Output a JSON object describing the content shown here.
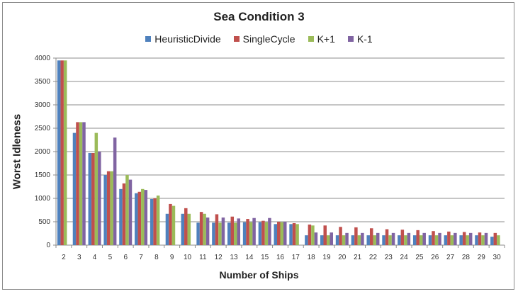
{
  "chart_data": {
    "type": "bar",
    "title": "Sea Condition 3",
    "xlabel": "Number of Ships",
    "ylabel": "Worst Idleness",
    "ylim": [
      0,
      4000
    ],
    "yticks": [
      0,
      500,
      1000,
      1500,
      2000,
      2500,
      3000,
      3500,
      4000
    ],
    "grid": true,
    "legend_position": "top",
    "categories": [
      "2",
      "3",
      "4",
      "5",
      "6",
      "7",
      "8",
      "9",
      "10",
      "11",
      "12",
      "13",
      "14",
      "15",
      "16",
      "17",
      "18",
      "19",
      "20",
      "21",
      "22",
      "23",
      "24",
      "25",
      "26",
      "27",
      "28",
      "29",
      "30"
    ],
    "series": [
      {
        "name": "HeuristicDivide",
        "color": "#4f81bd",
        "values": [
          3950,
          2400,
          1970,
          1500,
          1200,
          1110,
          985,
          670,
          670,
          480,
          480,
          480,
          490,
          490,
          450,
          450,
          210,
          210,
          210,
          210,
          210,
          210,
          210,
          210,
          210,
          210,
          210,
          210,
          180
        ]
      },
      {
        "name": "SingleCycle",
        "color": "#c0504d",
        "values": [
          3950,
          2630,
          1970,
          1580,
          1320,
          1140,
          1000,
          880,
          790,
          710,
          660,
          610,
          560,
          520,
          500,
          470,
          440,
          420,
          390,
          380,
          360,
          340,
          330,
          320,
          300,
          290,
          280,
          270,
          260
        ]
      },
      {
        "name": "K+1",
        "color": "#9bbb59",
        "values": [
          3950,
          2630,
          2400,
          1580,
          1500,
          1200,
          1060,
          840,
          670,
          670,
          480,
          480,
          490,
          490,
          490,
          450,
          420,
          210,
          210,
          210,
          210,
          210,
          210,
          210,
          210,
          210,
          210,
          210,
          210
        ]
      },
      {
        "name": "K-1",
        "color": "#8064a2",
        "values": [
          null,
          2630,
          2000,
          2300,
          1400,
          1180,
          null,
          null,
          null,
          590,
          590,
          570,
          580,
          580,
          500,
          null,
          270,
          270,
          260,
          260,
          260,
          260,
          260,
          260,
          260,
          260,
          260,
          260,
          null
        ]
      }
    ]
  }
}
